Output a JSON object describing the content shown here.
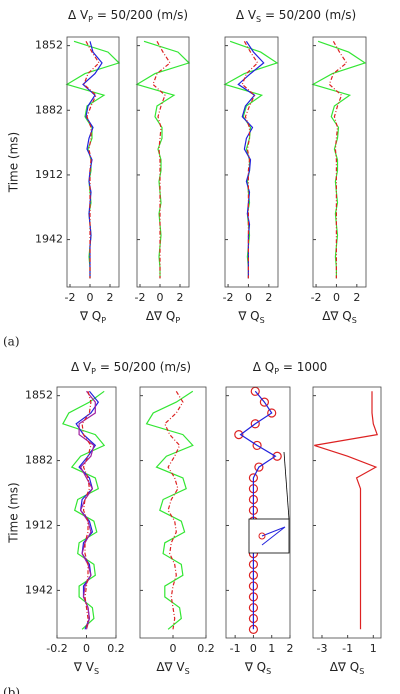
{
  "chart_data": [
    {
      "type": "line",
      "title": "Δ V",
      "title_sub": "P",
      "title_tail": " = 50/200 (m/s)",
      "panel_label": "(a)",
      "y_label": "Time (ms)",
      "x_label": "∇ Q",
      "x_label_sub": "P",
      "times": [
        1850,
        1855,
        1860,
        1865,
        1870,
        1875,
        1880,
        1885,
        1890,
        1895,
        1900,
        1905,
        1910,
        1915,
        1920,
        1925,
        1930,
        1935,
        1940,
        1945,
        1950,
        1955,
        1960
      ],
      "xlim": [
        -2.3,
        2.9
      ],
      "xticks": [
        -2,
        0,
        2
      ],
      "ylim": [
        1848,
        1964
      ],
      "yticks": [
        1852,
        1882,
        1912,
        1942
      ],
      "series": [
        {
          "color": "#33e633",
          "linestyle": "solid",
          "values": [
            -1.6,
            1.8,
            2.9,
            -0.5,
            -2.3,
            1.4,
            -0.3,
            -0.5,
            0.2,
            0.2,
            -0.2,
            0.1,
            0.1,
            -0.1,
            0,
            0.1,
            -0.1,
            0,
            0.1,
            0,
            -0.1,
            0,
            0
          ]
        },
        {
          "color": "#2222dd",
          "linestyle": "solid",
          "values": [
            0,
            0.3,
            1.2,
            0.5,
            -0.7,
            0.5,
            -0.2,
            -0.4,
            0.3,
            -0.1,
            -0.3,
            0.2,
            0,
            -0.1,
            0.1,
            0,
            -0.1,
            0,
            0.1,
            0,
            0,
            0,
            0
          ]
        },
        {
          "color": "#dd2222",
          "linestyle": "dashdot",
          "values": [
            -0.4,
            0.2,
            0.9,
            -0.2,
            -0.6,
            0.6,
            0.1,
            -0.3,
            0.1,
            0.1,
            -0.1,
            0.1,
            0,
            0,
            0,
            0,
            0,
            0,
            0,
            0,
            0,
            0,
            0
          ]
        }
      ]
    },
    {
      "type": "line",
      "x_label": "Δ∇ Q",
      "x_label_sub": "P",
      "times": [
        1850,
        1855,
        1860,
        1865,
        1870,
        1875,
        1880,
        1885,
        1890,
        1895,
        1900,
        1905,
        1910,
        1915,
        1920,
        1925,
        1930,
        1935,
        1940,
        1945,
        1950,
        1955,
        1960
      ],
      "xlim": [
        -2.3,
        2.9
      ],
      "xticks": [
        -2,
        0,
        2
      ],
      "ylim": [
        1848,
        1964
      ],
      "series": [
        {
          "color": "#33e633",
          "linestyle": "solid",
          "values": [
            -1.6,
            1.8,
            2.9,
            -0.5,
            -2.3,
            1.4,
            -0.3,
            -0.5,
            0.2,
            0.2,
            -0.2,
            0.1,
            0.1,
            -0.1,
            0,
            0.1,
            -0.1,
            0,
            0.1,
            0,
            -0.1,
            0,
            0
          ]
        },
        {
          "color": "#dd2222",
          "linestyle": "dashdot",
          "values": [
            -0.3,
            0.3,
            1.0,
            -0.3,
            -0.7,
            0.5,
            0.1,
            -0.2,
            0.1,
            0,
            -0.1,
            0,
            0,
            0,
            0,
            0,
            0,
            0,
            0,
            0,
            0,
            0,
            0
          ]
        }
      ]
    },
    {
      "type": "line",
      "title": "Δ V",
      "title_sub": "S",
      "title_tail": " = 50/200 (m/s)",
      "x_label": "∇ Q",
      "x_label_sub": "S",
      "times": [
        1850,
        1855,
        1860,
        1865,
        1870,
        1875,
        1880,
        1885,
        1890,
        1895,
        1900,
        1905,
        1910,
        1915,
        1920,
        1925,
        1930,
        1935,
        1940,
        1945,
        1950,
        1955,
        1960
      ],
      "xlim": [
        -2.3,
        2.9
      ],
      "xticks": [
        -2,
        0,
        2
      ],
      "ylim": [
        1848,
        1964
      ],
      "series": [
        {
          "color": "#33e633",
          "linestyle": "solid",
          "values": [
            -1.8,
            1.2,
            2.8,
            -0.4,
            -2.3,
            1.3,
            -0.2,
            -0.5,
            0.2,
            0.1,
            -0.2,
            0.1,
            0.1,
            -0.1,
            0,
            0.1,
            -0.1,
            0,
            0.1,
            0,
            -0.1,
            0,
            0
          ]
        },
        {
          "color": "#2222dd",
          "linestyle": "solid",
          "values": [
            -0.2,
            0.5,
            1.5,
            0.2,
            -1.0,
            0.6,
            -0.3,
            -0.6,
            0.4,
            -0.2,
            -0.4,
            0.2,
            0.1,
            -0.2,
            0.1,
            0,
            -0.1,
            0.1,
            0,
            0,
            0,
            0,
            0
          ]
        },
        {
          "color": "#dd2222",
          "linestyle": "dashdot",
          "values": [
            -0.4,
            0.2,
            0.9,
            -0.2,
            -0.6,
            0.6,
            0.1,
            -0.3,
            0.1,
            0.1,
            -0.1,
            0.1,
            0,
            0,
            0,
            0,
            0,
            0,
            0,
            0,
            0,
            0,
            0
          ]
        }
      ]
    },
    {
      "type": "line",
      "x_label": "Δ∇ Q",
      "x_label_sub": "S",
      "times": [
        1850,
        1855,
        1860,
        1865,
        1870,
        1875,
        1880,
        1885,
        1890,
        1895,
        1900,
        1905,
        1910,
        1915,
        1920,
        1925,
        1930,
        1935,
        1940,
        1945,
        1950,
        1955,
        1960
      ],
      "xlim": [
        -2.3,
        2.9
      ],
      "xticks": [
        -2,
        0,
        2
      ],
      "ylim": [
        1848,
        1964
      ],
      "series": [
        {
          "color": "#33e633",
          "linestyle": "solid",
          "values": [
            -1.8,
            1.2,
            2.8,
            -0.4,
            -2.3,
            1.3,
            -0.2,
            -0.5,
            0.2,
            0.1,
            -0.2,
            0.1,
            0.1,
            -0.1,
            0,
            0.1,
            -0.1,
            0,
            0.1,
            0,
            -0.1,
            0,
            0
          ]
        },
        {
          "color": "#dd2222",
          "linestyle": "dashdot",
          "values": [
            -0.3,
            0.3,
            1.0,
            -0.3,
            -0.7,
            0.5,
            0.1,
            -0.2,
            0.1,
            0,
            -0.1,
            0,
            0,
            0,
            0,
            0,
            0,
            0,
            0,
            0,
            0,
            0,
            0
          ]
        }
      ]
    },
    {
      "type": "line",
      "title": "Δ V",
      "title_sub": "P",
      "title_tail": " = 50/200 (m/s)",
      "panel_label": "(b)",
      "y_label": "Time (ms)",
      "x_label": "∇ V",
      "x_label_sub": "S",
      "times": [
        1850,
        1855,
        1860,
        1865,
        1870,
        1875,
        1880,
        1885,
        1890,
        1895,
        1900,
        1905,
        1910,
        1915,
        1920,
        1925,
        1930,
        1935,
        1940,
        1945,
        1950,
        1955,
        1960
      ],
      "xlim": [
        -0.2,
        0.2
      ],
      "xticks": [
        -0.2,
        0,
        0.2
      ],
      "ylim": [
        1848,
        1964
      ],
      "yticks": [
        1852,
        1882,
        1912,
        1942
      ],
      "series": [
        {
          "color": "#33e633",
          "linestyle": "solid",
          "values": [
            0.12,
            0.02,
            -0.12,
            -0.16,
            0.06,
            0.12,
            -0.04,
            -0.1,
            0.06,
            0.08,
            -0.06,
            -0.08,
            0.05,
            0.07,
            -0.05,
            -0.06,
            0.05,
            0.06,
            -0.05,
            -0.05,
            0.04,
            0.05,
            -0.03
          ]
        },
        {
          "color": "#2222dd",
          "linestyle": "solid",
          "values": [
            0.02,
            0.08,
            0.03,
            -0.07,
            -0.02,
            0.06,
            0.01,
            -0.05,
            0.02,
            0.04,
            -0.03,
            -0.04,
            0.02,
            0.04,
            -0.02,
            -0.03,
            0.02,
            0.03,
            -0.02,
            -0.02,
            0.01,
            0.02,
            -0.01
          ]
        },
        {
          "color": "#a020a0",
          "linestyle": "solid",
          "values": [
            0,
            0.06,
            0.06,
            -0.05,
            -0.05,
            0.05,
            0.03,
            -0.04,
            0,
            0.04,
            -0.01,
            -0.04,
            0.01,
            0.03,
            -0.01,
            -0.03,
            0.01,
            0.03,
            -0.01,
            -0.02,
            0.01,
            0.02,
            0
          ]
        },
        {
          "color": "#dd2222",
          "linestyle": "dashdot",
          "values": [
            0.01,
            0.03,
            0.02,
            -0.03,
            -0.02,
            0.03,
            0.01,
            -0.02,
            0.01,
            0.02,
            -0.01,
            -0.02,
            0.01,
            0.01,
            -0.01,
            -0.01,
            0.01,
            0.01,
            0,
            -0.01,
            0,
            0.01,
            0
          ]
        }
      ]
    },
    {
      "type": "line",
      "x_label": "Δ∇ V",
      "x_label_sub": "S",
      "times": [
        1850,
        1855,
        1860,
        1865,
        1870,
        1875,
        1880,
        1885,
        1890,
        1895,
        1900,
        1905,
        1910,
        1915,
        1920,
        1925,
        1930,
        1935,
        1940,
        1945,
        1950,
        1955,
        1960
      ],
      "xlim": [
        -0.2,
        0.2
      ],
      "xticks": [
        0,
        0.2
      ],
      "ylim": [
        1848,
        1964
      ],
      "series": [
        {
          "color": "#33e633",
          "linestyle": "solid",
          "values": [
            0.12,
            0.02,
            -0.12,
            -0.16,
            0.06,
            0.12,
            -0.04,
            -0.1,
            0.06,
            0.08,
            -0.06,
            -0.08,
            0.05,
            0.07,
            -0.05,
            -0.06,
            0.05,
            0.06,
            -0.05,
            -0.05,
            0.04,
            0.05,
            -0.03
          ]
        },
        {
          "color": "#dd2222",
          "linestyle": "dashdot",
          "values": [
            0.02,
            0.06,
            0.02,
            -0.05,
            -0.02,
            0.04,
            0.01,
            -0.03,
            0.01,
            0.03,
            -0.01,
            -0.03,
            0.01,
            0.02,
            -0.01,
            -0.02,
            0.01,
            0.02,
            0,
            -0.01,
            0,
            0.01,
            0
          ]
        }
      ]
    },
    {
      "type": "line",
      "title": "Δ Q",
      "title_sub": "P",
      "title_tail": " = 1000",
      "x_label": "∇ Q",
      "x_label_sub": "S",
      "times": [
        1850,
        1855,
        1860,
        1865,
        1870,
        1875,
        1880,
        1885,
        1890,
        1895,
        1900,
        1905,
        1910,
        1915,
        1920,
        1925,
        1930,
        1935,
        1940,
        1945,
        1950,
        1955,
        1960
      ],
      "xlim": [
        -1.5,
        2.0
      ],
      "xticks": [
        -1,
        0,
        1,
        2
      ],
      "ylim": [
        1848,
        1964
      ],
      "series": [
        {
          "color": "#dd2222",
          "linestyle": "none",
          "marker": "circle",
          "values": [
            0.1,
            0.6,
            1.0,
            0.1,
            -0.8,
            0.2,
            1.3,
            0.3,
            0,
            0,
            0,
            0,
            0,
            0,
            0,
            0,
            0,
            0,
            0,
            0,
            0,
            0,
            0
          ]
        },
        {
          "color": "#2222dd",
          "linestyle": "solid",
          "values": [
            0.1,
            0.6,
            1.0,
            0.1,
            -0.7,
            0.2,
            1.2,
            0.3,
            0,
            0,
            0,
            0,
            0,
            0,
            0,
            0,
            0,
            0,
            0,
            0,
            0,
            0,
            0
          ]
        }
      ]
    },
    {
      "type": "line",
      "x_label": "Δ∇ Q",
      "x_label_sub": "S",
      "times": [
        1850,
        1855,
        1860,
        1865,
        1870,
        1875,
        1880,
        1885,
        1890,
        1895,
        1900,
        1905,
        1910,
        1915,
        1920,
        1925,
        1930,
        1935,
        1940,
        1945,
        1950,
        1955,
        1960
      ],
      "xlim": [
        -3.7,
        1.6
      ],
      "xticks": [
        -3,
        -1,
        1
      ],
      "ylim": [
        1848,
        1964
      ],
      "series": [
        {
          "color": "#dd2222",
          "linestyle": "solid",
          "values": [
            0.9,
            0.9,
            0.9,
            1.0,
            1.3,
            -3.6,
            -1.0,
            1.2,
            -0.3,
            0,
            0,
            0,
            0,
            0,
            0,
            0,
            0,
            0,
            0,
            0,
            0,
            0,
            0
          ]
        }
      ]
    }
  ]
}
